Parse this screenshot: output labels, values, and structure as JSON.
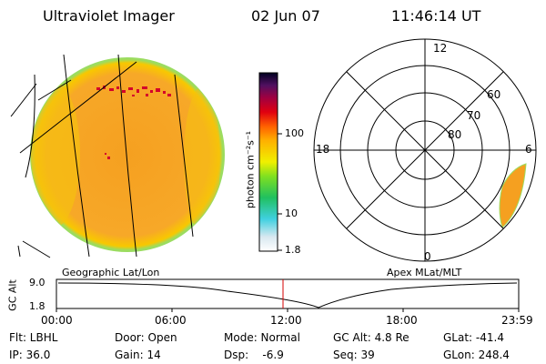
{
  "header": {
    "instrument": "Ultraviolet Imager",
    "date": "02 Jun 07",
    "time": "11:46:14 UT"
  },
  "colorbar": {
    "unit_label": "photon cm⁻²s⁻¹",
    "ticks": [
      "100",
      "10",
      "1.8"
    ]
  },
  "polar": {
    "mlt_labels": [
      "12",
      "18",
      "6",
      "0"
    ],
    "lat_labels": [
      "60",
      "70",
      "80"
    ]
  },
  "labels": {
    "left_grid": "Geographic Lat/Lon",
    "right_grid": "Apex MLat/MLT"
  },
  "altitude_plot": {
    "axis_label": "GC Alt",
    "y_ticks": [
      "9.0",
      "1.8"
    ],
    "x_ticks": [
      "00:00",
      "06:00",
      "12:00",
      "18:00",
      "23:59"
    ]
  },
  "info": {
    "flt": "Flt: LBHL",
    "ip": "IP: 36.0",
    "door": "Door: Open",
    "gain": "Gain: 14",
    "mode": "Mode: Normal",
    "dsp": "Dsp:    -6.9",
    "gc_alt": "GC Alt: 4.8 Re",
    "seq": "Seq: 39",
    "glat": "GLat: -41.4",
    "glon": "GLon: 248.4"
  },
  "colors": {
    "image_fill": "#f5a623",
    "image_edge": "#f0d000",
    "aurora": "#d4002a",
    "marker": "#d40000"
  }
}
